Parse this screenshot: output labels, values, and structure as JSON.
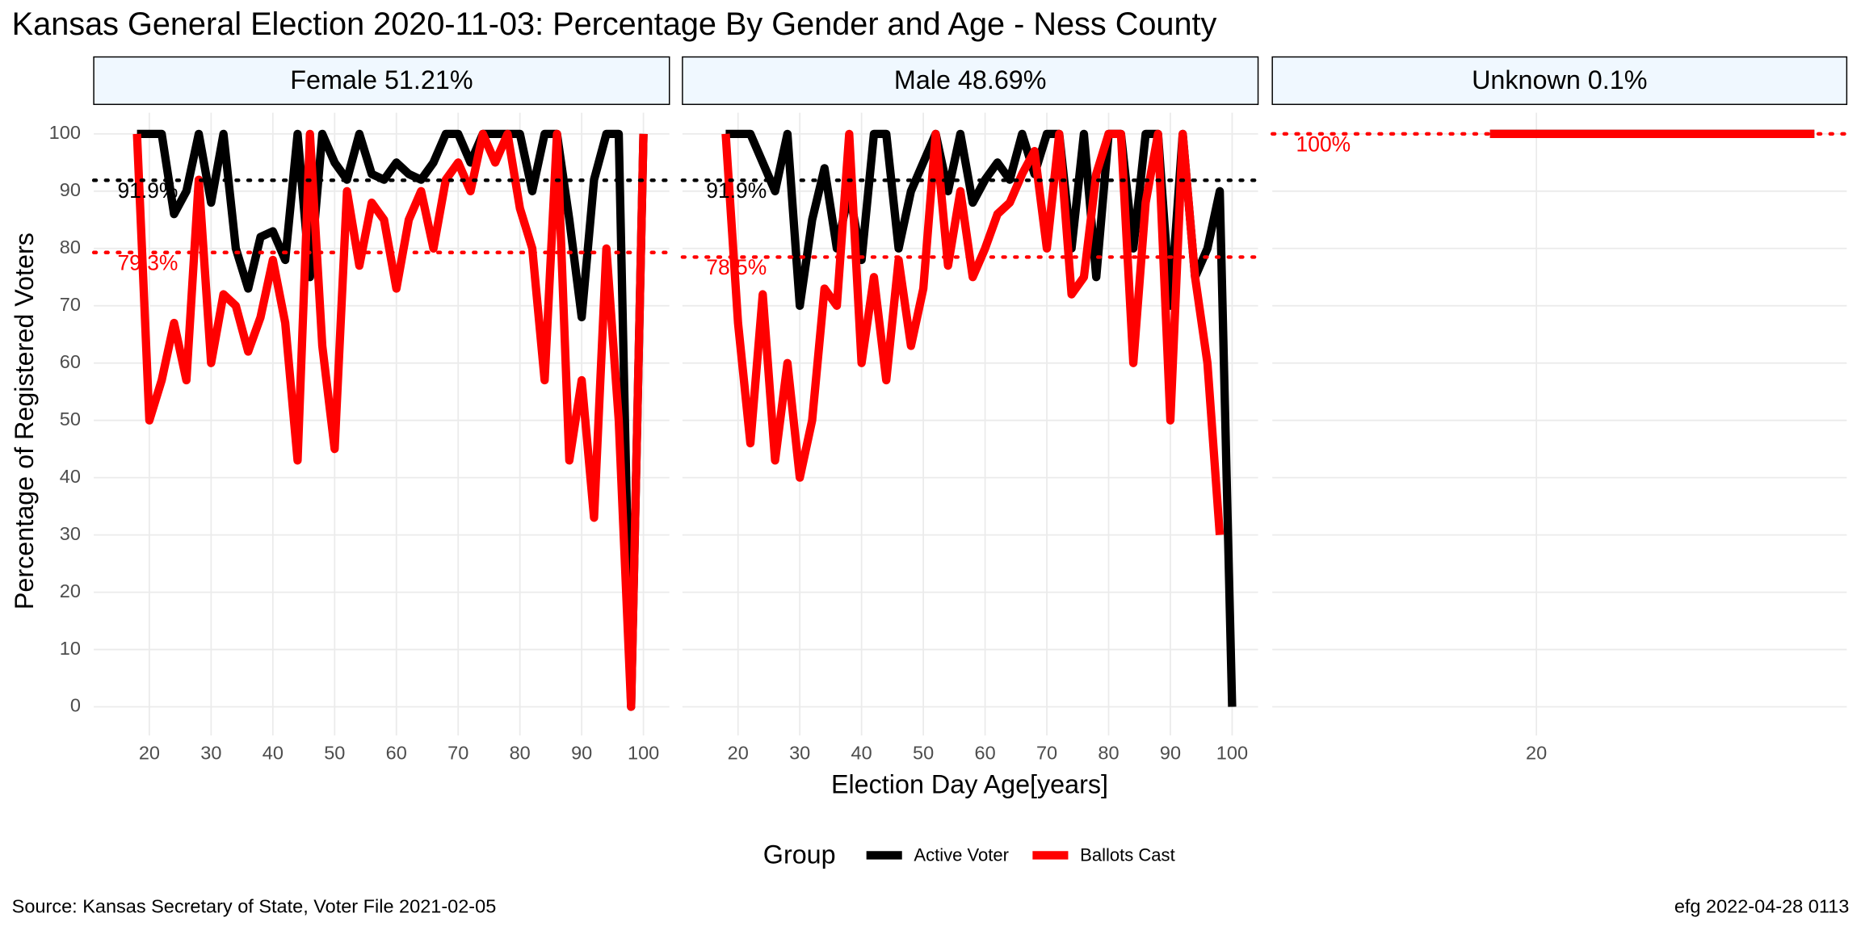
{
  "title": "Kansas General Election 2020-11-03:  Percentage By Gender and Age - Ness County",
  "x_label": "Election Day Age[years]",
  "y_label": "Percentage of Registered Voters",
  "legend_title": "Group",
  "source": "Source:  Kansas Secretary of State, Voter File  2021-02-05",
  "credit": "efg 2022-04-28 0113",
  "chart_data": [
    {
      "type": "line",
      "strip": "Female 51.21%",
      "x": [
        18,
        20,
        22,
        24,
        26,
        28,
        30,
        32,
        34,
        36,
        38,
        40,
        42,
        44,
        46,
        48,
        50,
        52,
        54,
        56,
        58,
        60,
        62,
        64,
        66,
        68,
        70,
        72,
        74,
        76,
        78,
        80,
        82,
        84,
        86,
        88,
        90,
        92,
        94,
        96,
        98,
        100
      ],
      "xlim": [
        11,
        104.2
      ],
      "xticks": [
        20,
        30,
        40,
        50,
        60,
        70,
        80,
        90,
        100
      ],
      "ylim": [
        -5,
        103.7
      ],
      "yticks": [
        0,
        10,
        20,
        30,
        40,
        50,
        60,
        70,
        80,
        90,
        100
      ],
      "series": [
        {
          "name": "Active Voter",
          "color": "#000000",
          "values": [
            100,
            100,
            100,
            86,
            90,
            100,
            88,
            100,
            80,
            73,
            82,
            83,
            78,
            100,
            75,
            100,
            95,
            92,
            100,
            93,
            92,
            95,
            93,
            92,
            95,
            100,
            100,
            95,
            100,
            100,
            100,
            100,
            90,
            100,
            100,
            85,
            68,
            92,
            100,
            100,
            0,
            100
          ]
        },
        {
          "name": "Ballots Cast",
          "color": "#ff0000",
          "values": [
            100,
            50,
            57,
            67,
            57,
            92,
            60,
            72,
            70,
            62,
            68,
            78,
            67,
            43,
            100,
            63,
            45,
            90,
            77,
            88,
            85,
            73,
            85,
            90,
            80,
            92,
            95,
            90,
            100,
            95,
            100,
            87,
            80,
            57,
            100,
            43,
            57,
            33,
            80,
            50,
            0,
            100
          ]
        }
      ],
      "reference_lines": [
        {
          "value": 91.9,
          "label": "91.9%",
          "color": "#000000"
        },
        {
          "value": 79.3,
          "label": "79.3%",
          "color": "#ff0000"
        }
      ]
    },
    {
      "type": "line",
      "strip": "Male 48.69%",
      "x": [
        18,
        20,
        22,
        24,
        26,
        28,
        30,
        32,
        34,
        36,
        38,
        40,
        42,
        44,
        46,
        48,
        50,
        52,
        54,
        56,
        58,
        60,
        62,
        64,
        66,
        68,
        70,
        72,
        74,
        76,
        78,
        80,
        82,
        84,
        86,
        88,
        90,
        92,
        94,
        96,
        98,
        100
      ],
      "xlim": [
        11,
        104.2
      ],
      "xticks": [
        20,
        30,
        40,
        50,
        60,
        70,
        80,
        90,
        100
      ],
      "ylim": [
        -5,
        103.7
      ],
      "yticks": [
        0,
        10,
        20,
        30,
        40,
        50,
        60,
        70,
        80,
        90,
        100
      ],
      "series": [
        {
          "name": "Active Voter",
          "color": "#000000",
          "values": [
            100,
            100,
            100,
            95,
            90,
            100,
            70,
            85,
            94,
            80,
            90,
            78,
            100,
            100,
            80,
            90,
            95,
            100,
            90,
            100,
            88,
            92,
            95,
            92,
            100,
            93,
            100,
            100,
            80,
            100,
            75,
            100,
            100,
            80,
            100,
            100,
            70,
            100,
            75,
            80,
            90,
            0
          ]
        },
        {
          "name": "Ballots Cast",
          "color": "#ff0000",
          "values": [
            100,
            67,
            46,
            72,
            43,
            60,
            40,
            50,
            73,
            70,
            100,
            60,
            75,
            57,
            78,
            63,
            73,
            100,
            77,
            90,
            75,
            80,
            86,
            88,
            93,
            97,
            80,
            100,
            72,
            75,
            93,
            100,
            100,
            60,
            88,
            100,
            50,
            100,
            75,
            60,
            30,
            null
          ]
        }
      ],
      "reference_lines": [
        {
          "value": 91.9,
          "label": "91.9%",
          "color": "#000000"
        },
        {
          "value": 78.5,
          "label": "78.5%",
          "color": "#ff0000"
        }
      ]
    },
    {
      "type": "line",
      "strip": "Unknown 0.1%",
      "x": [
        19,
        20,
        21,
        22,
        23,
        24,
        25,
        26
      ],
      "xlim": [
        14.3,
        26.7
      ],
      "xticks": [
        20
      ],
      "ylim": [
        -5,
        103.7
      ],
      "yticks": [
        0,
        10,
        20,
        30,
        40,
        50,
        60,
        70,
        80,
        90,
        100
      ],
      "series": [
        {
          "name": "Active Voter",
          "color": "#000000",
          "values": [
            100,
            100,
            100,
            100,
            100,
            100,
            100,
            100
          ]
        },
        {
          "name": "Ballots Cast",
          "color": "#ff0000",
          "values": [
            100,
            100,
            100,
            100,
            100,
            100,
            100,
            100
          ]
        }
      ],
      "reference_lines": [
        {
          "value": 100,
          "label": "100%",
          "color": "#ff0000"
        }
      ]
    }
  ]
}
